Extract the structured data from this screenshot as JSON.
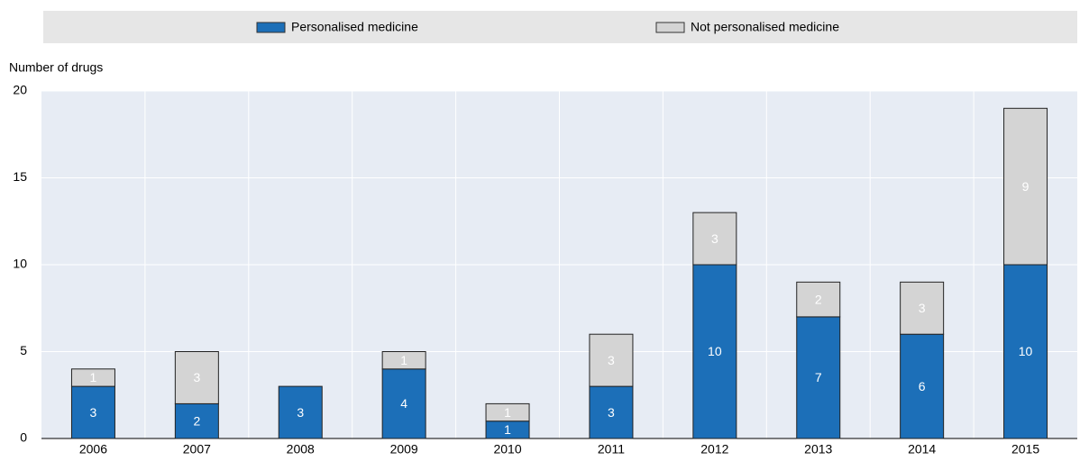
{
  "chart_data": {
    "type": "stacked_bar",
    "y_label": "Number of drugs",
    "categories": [
      "2006",
      "2007",
      "2008",
      "2009",
      "2010",
      "2011",
      "2012",
      "2013",
      "2014",
      "2015"
    ],
    "series": [
      {
        "name": "Personalised medicine",
        "color": "#1c6fb8",
        "values": [
          3,
          2,
          3,
          4,
          1,
          3,
          10,
          7,
          6,
          10
        ]
      },
      {
        "name": "Not personalised medicine",
        "color": "#d4d4d4",
        "values": [
          1,
          3,
          null,
          1,
          1,
          3,
          3,
          2,
          3,
          9
        ]
      }
    ],
    "ylim": [
      0,
      20
    ],
    "yticks": [
      0,
      5,
      10,
      15,
      20
    ],
    "grid": true,
    "legend": "top"
  }
}
